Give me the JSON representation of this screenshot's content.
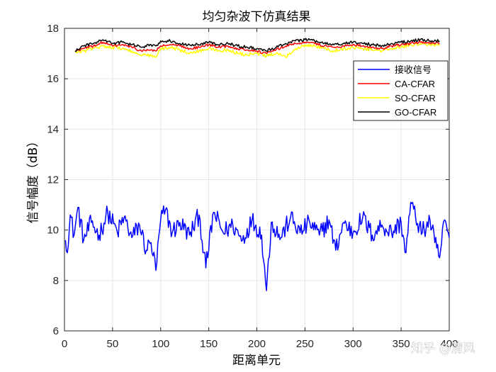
{
  "chart_data": {
    "type": "line",
    "title": "均匀杂波下仿真结果",
    "xlabel": "距离单元",
    "ylabel": "信号幅度（dB）",
    "xlim": [
      0,
      400
    ],
    "ylim": [
      6,
      18
    ],
    "xticks": [
      "0",
      "50",
      "100",
      "150",
      "200",
      "250",
      "300",
      "350",
      "400"
    ],
    "yticks": [
      "6",
      "8",
      "10",
      "12",
      "14",
      "16",
      "18"
    ],
    "grid": true,
    "legend_position": "top-right",
    "series": [
      {
        "name": "接收信号",
        "color": "#0000ff",
        "x_start": 1,
        "x_end": 400,
        "anchors": [
          [
            1,
            9.6
          ],
          [
            4,
            9.4
          ],
          [
            6,
            10.6
          ],
          [
            10,
            9.8
          ],
          [
            14,
            10.9
          ],
          [
            20,
            9.6
          ],
          [
            28,
            10.3
          ],
          [
            36,
            9.8
          ],
          [
            45,
            10.7
          ],
          [
            55,
            9.9
          ],
          [
            62,
            10.5
          ],
          [
            70,
            9.7
          ],
          [
            78,
            10.2
          ],
          [
            85,
            9.2
          ],
          [
            90,
            9.5
          ],
          [
            95,
            8.4
          ],
          [
            100,
            10.4
          ],
          [
            105,
            10.8
          ],
          [
            112,
            9.9
          ],
          [
            120,
            10.3
          ],
          [
            130,
            9.8
          ],
          [
            140,
            10.6
          ],
          [
            147,
            8.5
          ],
          [
            155,
            10.7
          ],
          [
            165,
            9.9
          ],
          [
            175,
            10.2
          ],
          [
            185,
            9.6
          ],
          [
            195,
            10.4
          ],
          [
            205,
            9.8
          ],
          [
            210,
            7.6
          ],
          [
            215,
            10.3
          ],
          [
            225,
            9.7
          ],
          [
            235,
            10.5
          ],
          [
            245,
            9.9
          ],
          [
            255,
            10.3
          ],
          [
            265,
            9.8
          ],
          [
            275,
            10.4
          ],
          [
            282,
            9.2
          ],
          [
            290,
            10.3
          ],
          [
            300,
            9.9
          ],
          [
            310,
            10.5
          ],
          [
            320,
            9.8
          ],
          [
            330,
            10.2
          ],
          [
            340,
            9.9
          ],
          [
            350,
            10.3
          ],
          [
            355,
            9.1
          ],
          [
            360,
            11.1
          ],
          [
            365,
            10.5
          ],
          [
            372,
            9.9
          ],
          [
            380,
            10.4
          ],
          [
            385,
            9.5
          ],
          [
            390,
            8.9
          ],
          [
            395,
            10.4
          ],
          [
            400,
            9.7
          ]
        ]
      },
      {
        "name": "CA-CFAR",
        "color": "#ff0000",
        "x_start": 11,
        "x_end": 390,
        "anchors": [
          [
            11,
            17.1
          ],
          [
            20,
            17.2
          ],
          [
            30,
            17.3
          ],
          [
            40,
            17.45
          ],
          [
            50,
            17.3
          ],
          [
            60,
            17.35
          ],
          [
            70,
            17.25
          ],
          [
            80,
            17.1
          ],
          [
            90,
            17.15
          ],
          [
            95,
            17.1
          ],
          [
            100,
            17.3
          ],
          [
            110,
            17.35
          ],
          [
            120,
            17.3
          ],
          [
            130,
            17.2
          ],
          [
            140,
            17.25
          ],
          [
            150,
            17.35
          ],
          [
            160,
            17.25
          ],
          [
            170,
            17.3
          ],
          [
            180,
            17.2
          ],
          [
            190,
            17.15
          ],
          [
            200,
            17.1
          ],
          [
            210,
            17.0
          ],
          [
            220,
            17.15
          ],
          [
            230,
            17.3
          ],
          [
            240,
            17.4
          ],
          [
            250,
            17.45
          ],
          [
            260,
            17.4
          ],
          [
            270,
            17.3
          ],
          [
            280,
            17.25
          ],
          [
            290,
            17.3
          ],
          [
            300,
            17.35
          ],
          [
            310,
            17.3
          ],
          [
            320,
            17.25
          ],
          [
            330,
            17.2
          ],
          [
            340,
            17.3
          ],
          [
            350,
            17.35
          ],
          [
            360,
            17.4
          ],
          [
            370,
            17.45
          ],
          [
            380,
            17.4
          ],
          [
            390,
            17.4
          ]
        ]
      },
      {
        "name": "SO-CFAR",
        "color": "#ffff00",
        "x_start": 11,
        "x_end": 390,
        "anchors": [
          [
            11,
            17.05
          ],
          [
            20,
            17.1
          ],
          [
            30,
            17.2
          ],
          [
            40,
            17.3
          ],
          [
            50,
            17.25
          ],
          [
            60,
            17.2
          ],
          [
            70,
            17.1
          ],
          [
            80,
            16.9
          ],
          [
            85,
            16.95
          ],
          [
            95,
            16.85
          ],
          [
            100,
            17.2
          ],
          [
            110,
            17.25
          ],
          [
            120,
            17.15
          ],
          [
            130,
            17.0
          ],
          [
            140,
            17.1
          ],
          [
            150,
            17.2
          ],
          [
            160,
            17.1
          ],
          [
            170,
            17.15
          ],
          [
            180,
            17.0
          ],
          [
            190,
            16.95
          ],
          [
            200,
            17.0
          ],
          [
            210,
            16.9
          ],
          [
            220,
            17.0
          ],
          [
            230,
            16.85
          ],
          [
            240,
            17.2
          ],
          [
            250,
            17.35
          ],
          [
            260,
            17.3
          ],
          [
            270,
            17.2
          ],
          [
            280,
            17.1
          ],
          [
            290,
            17.2
          ],
          [
            300,
            17.25
          ],
          [
            310,
            17.2
          ],
          [
            320,
            17.15
          ],
          [
            330,
            17.1
          ],
          [
            340,
            17.2
          ],
          [
            350,
            17.25
          ],
          [
            360,
            17.35
          ],
          [
            370,
            17.4
          ],
          [
            380,
            17.35
          ],
          [
            390,
            17.35
          ]
        ]
      },
      {
        "name": "GO-CFAR",
        "color": "#000000",
        "x_start": 11,
        "x_end": 390,
        "anchors": [
          [
            11,
            17.1
          ],
          [
            20,
            17.3
          ],
          [
            30,
            17.4
          ],
          [
            40,
            17.55
          ],
          [
            50,
            17.4
          ],
          [
            60,
            17.45
          ],
          [
            70,
            17.35
          ],
          [
            80,
            17.25
          ],
          [
            90,
            17.35
          ],
          [
            95,
            17.3
          ],
          [
            100,
            17.5
          ],
          [
            110,
            17.5
          ],
          [
            120,
            17.4
          ],
          [
            130,
            17.35
          ],
          [
            140,
            17.35
          ],
          [
            150,
            17.45
          ],
          [
            160,
            17.35
          ],
          [
            170,
            17.4
          ],
          [
            180,
            17.3
          ],
          [
            190,
            17.25
          ],
          [
            200,
            17.2
          ],
          [
            210,
            17.1
          ],
          [
            220,
            17.25
          ],
          [
            230,
            17.4
          ],
          [
            240,
            17.5
          ],
          [
            250,
            17.55
          ],
          [
            260,
            17.5
          ],
          [
            270,
            17.4
          ],
          [
            280,
            17.35
          ],
          [
            290,
            17.4
          ],
          [
            300,
            17.45
          ],
          [
            310,
            17.4
          ],
          [
            320,
            17.35
          ],
          [
            330,
            17.3
          ],
          [
            340,
            17.4
          ],
          [
            350,
            17.45
          ],
          [
            360,
            17.5
          ],
          [
            370,
            17.55
          ],
          [
            380,
            17.5
          ],
          [
            390,
            17.5
          ]
        ]
      }
    ]
  },
  "watermark": "知乎 @清风"
}
